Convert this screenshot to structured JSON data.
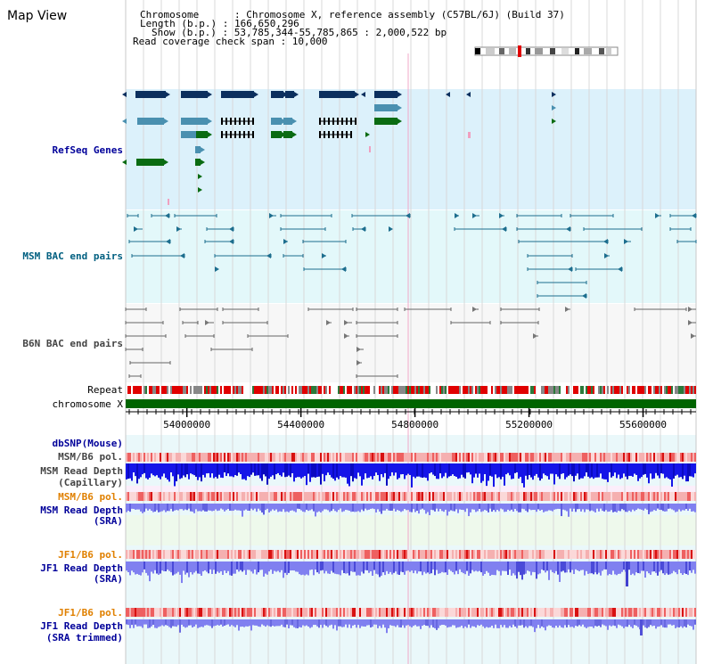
{
  "page": {
    "title": "Map View"
  },
  "info": {
    "chromosome": "Chromosome      : Chromosome X, reference assembly (C57BL/6J) (Build 37)",
    "length": "Length (b.p.) : 166,650,296",
    "show": "Show (b.p.) : 53,785,344-55,785,865 : 2,000,522 bp",
    "coverage": "Read coverage check span : 10,000"
  },
  "tracks": {
    "refseq": "RefSeq Genes",
    "msm_bac": "MSM BAC end pairs",
    "b6n_bac": "B6N BAC end pairs",
    "repeat": "Repeat",
    "chromosome": "chromosome X",
    "dbsnp": "dbSNP(Mouse)",
    "msm_b6_pol_1": "MSM/B6 pol.",
    "msm_depth_cap_1": "MSM Read Depth",
    "msm_depth_cap_2": "(Capillary)",
    "msm_b6_pol_2": "MSM/B6 pol.",
    "msm_depth_sra_1": "MSM Read Depth",
    "msm_depth_sra_2": "(SRA)",
    "jf1_b6_pol_1": "JF1/B6 pol.",
    "jf1_depth_sra_1": "JF1 Read Depth",
    "jf1_depth_sra_2": "(SRA)",
    "jf1_b6_pol_2": "JF1/B6 pol.",
    "jf1_depth_trim_1": "JF1 Read Depth",
    "jf1_depth_trim_2": "(SRA trimmed)"
  },
  "axis": {
    "range_bp": [
      53785344,
      55785865
    ],
    "ticks": [
      "54000000",
      "54400000",
      "54800000",
      "55200000",
      "55600000"
    ]
  },
  "colors": {
    "refseq_bg": "#dcf1fb",
    "msm_bac_bg": "#e3f8fa",
    "b6n_bac_bg": "#f7f7f7",
    "depth_bg": "#eaf8fa",
    "grid": "#d8d8d8",
    "gene_dark": "#0b2f5e",
    "gene_light": "#4a90b0",
    "gene_green": "#0a6b12",
    "msm_pair": "#1d6e8e",
    "b6n_pair": "#666666",
    "repeat_red": "#e00000",
    "chrom_green": "#006400",
    "label_navy": "#00009a",
    "label_teal": "#005f80",
    "label_orange": "#e08000",
    "label_gray": "#444444",
    "depth_blue_dark": "#1515e8",
    "depth_blue_light": "#8080f0"
  }
}
